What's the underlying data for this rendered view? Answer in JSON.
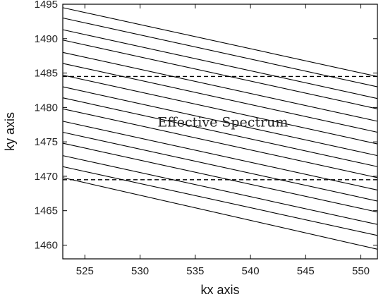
{
  "chart_data": {
    "type": "line",
    "title": "",
    "xlabel": "kx axis",
    "ylabel": "ky axis",
    "xlim": [
      523,
      551.5
    ],
    "ylim": [
      1458,
      1495
    ],
    "grid": false,
    "x_ticks": [
      525,
      530,
      535,
      540,
      545,
      550
    ],
    "y_ticks": [
      1460,
      1465,
      1470,
      1475,
      1480,
      1485,
      1490,
      1495
    ],
    "series": [
      {
        "x": [
          523,
          551.5
        ],
        "y": [
          1494.5,
          1484.5
        ],
        "style": "solid"
      },
      {
        "x": [
          523,
          551.5
        ],
        "y": [
          1493.0,
          1483.0
        ],
        "style": "solid"
      },
      {
        "x": [
          523,
          551.5
        ],
        "y": [
          1491.3,
          1481.3
        ],
        "style": "solid"
      },
      {
        "x": [
          523,
          551.5
        ],
        "y": [
          1489.8,
          1479.8
        ],
        "style": "solid"
      },
      {
        "x": [
          523,
          551.5
        ],
        "y": [
          1488.0,
          1478.0
        ],
        "style": "solid"
      },
      {
        "x": [
          523,
          551.5
        ],
        "y": [
          1486.4,
          1476.4
        ],
        "style": "solid"
      },
      {
        "x": [
          523,
          551.5
        ],
        "y": [
          1484.7,
          1474.7
        ],
        "style": "solid"
      },
      {
        "x": [
          523,
          551.5
        ],
        "y": [
          1483.0,
          1473.0
        ],
        "style": "solid"
      },
      {
        "x": [
          523,
          551.5
        ],
        "y": [
          1481.4,
          1471.4
        ],
        "style": "solid"
      },
      {
        "x": [
          523,
          551.5
        ],
        "y": [
          1479.8,
          1469.8
        ],
        "style": "solid"
      },
      {
        "x": [
          523,
          551.5
        ],
        "y": [
          1478.0,
          1468.0
        ],
        "style": "solid"
      },
      {
        "x": [
          523,
          551.5
        ],
        "y": [
          1476.4,
          1466.4
        ],
        "style": "solid"
      },
      {
        "x": [
          523,
          551.5
        ],
        "y": [
          1474.8,
          1464.8
        ],
        "style": "solid"
      },
      {
        "x": [
          523,
          551.5
        ],
        "y": [
          1473.0,
          1463.0
        ],
        "style": "solid"
      },
      {
        "x": [
          523,
          551.5
        ],
        "y": [
          1471.4,
          1461.4
        ],
        "style": "solid"
      },
      {
        "x": [
          523,
          551.5
        ],
        "y": [
          1469.8,
          1459.4
        ],
        "style": "solid"
      },
      {
        "x": [
          523,
          551.5
        ],
        "y": [
          1484.5,
          1484.5
        ],
        "style": "dashed"
      },
      {
        "x": [
          523,
          551.5
        ],
        "y": [
          1469.5,
          1469.5
        ],
        "style": "dashed"
      }
    ],
    "annotations": [
      {
        "text": "Effective Spectrum",
        "x": 537.5,
        "y": 1477.2
      }
    ]
  }
}
